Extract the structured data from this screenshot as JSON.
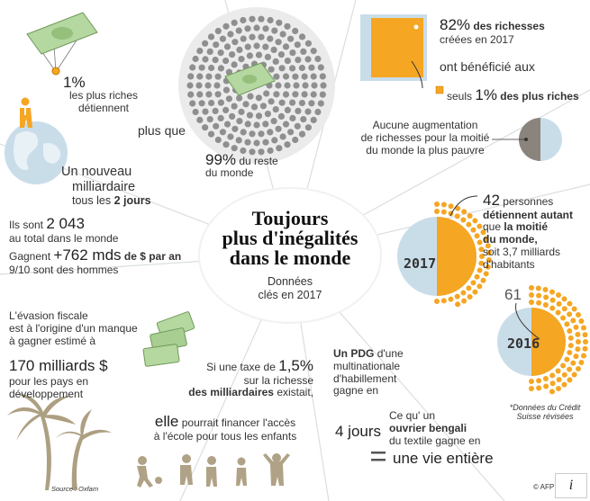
{
  "center": {
    "title_l1": "Toujours",
    "title_l2": "plus d'inégalités",
    "title_l3": "dans le monde",
    "sub_l1": "Données",
    "sub_l2": "clés en 2017"
  },
  "wealth_1pct": {
    "pct": "1%",
    "l1": "les plus riches",
    "l2": "détiennent",
    "l3": "plus que",
    "pct99": "99%",
    "l4": "du reste",
    "l5": "du monde"
  },
  "billionaire": {
    "l1": "Un nouveau",
    "l2": "milliardaire",
    "l3a": "tous les",
    "l3b": "2 jours"
  },
  "count": {
    "l1a": "Ils sont",
    "l1b": "2 043",
    "l2": "au total dans le monde",
    "l3a": "Gagnent",
    "l3b": "+762 mds",
    "l3c": "de $ par an",
    "l4": "9/10 sont des hommes"
  },
  "creation": {
    "pct82": "82%",
    "l1": "des richesses",
    "l2": "créées en 2017",
    "l3": "ont bénéficié aux",
    "l4a": "seuls",
    "l4b": "1%",
    "l4c": "des plus riches"
  },
  "poorest": {
    "l1": "Aucune augmentation",
    "l2": "de richesses pour la moitié",
    "l3": "du monde la plus pauvre"
  },
  "people42": {
    "n": "42",
    "l1": "personnes",
    "l2": "détiennent autant",
    "l3a": "que",
    "l3b": "la moitié",
    "l4": "du monde,",
    "l5": "soit 3,7 milliards",
    "l6": "d'habitants",
    "year1": "2017",
    "n61": "61",
    "year2": "2016",
    "note1": "*Données du Crédit",
    "note2": "Suisse révisées"
  },
  "evasion": {
    "l1": "L'évasion fiscale",
    "l2": "est à l'origine d'un manque",
    "l3": "à gagner estimé à",
    "amount": "170 milliards $",
    "l4": "pour les pays en",
    "l5": "développement"
  },
  "tax": {
    "l1a": "Si une taxe de",
    "l1b": "1,5%",
    "l2": "sur la richesse",
    "l3": "des milliardaires",
    "l3b": "existait,",
    "l4a": "elle",
    "l4b": "pourrait financer l'accès",
    "l5": "à l'école pour tous les enfants"
  },
  "ceo": {
    "l1a": "Un PDG",
    "l1b": "d'une",
    "l2": "multinationale",
    "l3": "d'habillement",
    "l4": "gagne en",
    "days": "4 jours",
    "eq": "=",
    "l5": "Ce qu' un",
    "l6": "ouvrier bengali",
    "l7": "du textile gagne en",
    "life": "une vie entière"
  },
  "source": "Source : Oxfam",
  "credit": "© AFP",
  "info_glyph": "i",
  "icons": [
    "banknote-icon",
    "globe-icon",
    "person-icon",
    "palm-tree-icon",
    "child-silhouette-icon"
  ],
  "colors": {
    "accent": "#f5a623",
    "blue": "#c9dde9",
    "slice": "#d5e3ec",
    "grey": "#888888",
    "ray": "#d9dee2"
  }
}
